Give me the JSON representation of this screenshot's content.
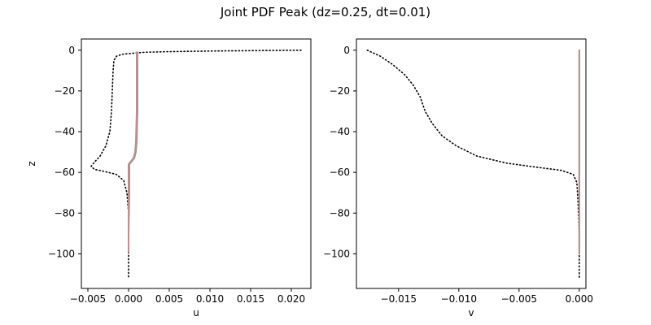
{
  "title": "Joint PDF Peak (dz=0.25, dt=0.01)",
  "chart_data": [
    {
      "type": "line",
      "xlabel": "u",
      "ylabel": "z",
      "xlim": [
        -0.0058,
        0.0224
      ],
      "ylim": [
        -117,
        5.5
      ],
      "xticks": [
        -0.005,
        0.0,
        0.005,
        0.01,
        0.015,
        0.02
      ],
      "xtick_labels": [
        "−0.005",
        "0.000",
        "0.005",
        "0.010",
        "0.015",
        "0.020"
      ],
      "yticks": [
        0,
        -20,
        -40,
        -60,
        -80,
        -100
      ],
      "ytick_labels": [
        "0",
        "−20",
        "−40",
        "−60",
        "−80",
        "−100"
      ],
      "series": [
        {
          "style": "dotted",
          "color": "#000000",
          "points": [
            [
              0.0212,
              0
            ],
            [
              0.016,
              -0.2
            ],
            [
              0.01,
              -0.4
            ],
            [
              0.005,
              -0.7
            ],
            [
              0.002,
              -1
            ],
            [
              0.0005,
              -1.5
            ],
            [
              -0.0008,
              -2
            ],
            [
              -0.0015,
              -3
            ],
            [
              -0.0018,
              -5
            ],
            [
              -0.0019,
              -10
            ],
            [
              -0.002,
              -20
            ],
            [
              -0.0021,
              -30
            ],
            [
              -0.0023,
              -40
            ],
            [
              -0.0028,
              -47
            ],
            [
              -0.0035,
              -52
            ],
            [
              -0.0042,
              -55
            ],
            [
              -0.0046,
              -57
            ],
            [
              -0.0042,
              -58.5
            ],
            [
              -0.003,
              -59.5
            ],
            [
              -0.0015,
              -61
            ],
            [
              -0.0006,
              -64
            ],
            [
              -0.0002,
              -70
            ],
            [
              0.0,
              -80
            ],
            [
              0.0,
              -100
            ],
            [
              0.0,
              -112
            ]
          ]
        },
        {
          "style": "solid",
          "color": "#999999",
          "points": [
            [
              0.0011,
              -1
            ],
            [
              0.0011,
              -10
            ],
            [
              0.0011,
              -30
            ],
            [
              0.001,
              -45
            ],
            [
              0.0009,
              -50
            ],
            [
              0.0007,
              -53
            ],
            [
              0.0003,
              -55
            ],
            [
              0.0001,
              -56
            ],
            [
              0.0001,
              -70
            ],
            [
              0.0,
              -90
            ],
            [
              0.0,
              -99
            ]
          ]
        },
        {
          "style": "solid",
          "color": "#bc8f8f",
          "points": [
            [
              0.001,
              -1
            ],
            [
              0.001,
              -10
            ],
            [
              0.001,
              -30
            ],
            [
              0.0009,
              -45
            ],
            [
              0.0008,
              -50
            ],
            [
              0.0006,
              -53
            ],
            [
              0.0002,
              -55
            ],
            [
              0.0,
              -56
            ],
            [
              0.0,
              -70
            ],
            [
              0.0,
              -90
            ],
            [
              0.0,
              -99
            ]
          ]
        }
      ]
    },
    {
      "type": "line",
      "xlabel": "v",
      "ylabel": "",
      "xlim": [
        -0.0185,
        0.00055
      ],
      "ylim": [
        -117,
        5.5
      ],
      "xticks": [
        -0.015,
        -0.01,
        -0.005,
        0.0
      ],
      "xtick_labels": [
        "−0.015",
        "−0.010",
        "−0.005",
        "0.000"
      ],
      "yticks": [
        0,
        -20,
        -40,
        -60,
        -80,
        -100
      ],
      "ytick_labels": [
        "0",
        "−20",
        "−40",
        "−60",
        "−80",
        "−100"
      ],
      "series": [
        {
          "style": "dotted",
          "color": "#000000",
          "points": [
            [
              -0.0176,
              0
            ],
            [
              -0.0165,
              -3
            ],
            [
              -0.0155,
              -7
            ],
            [
              -0.0145,
              -12
            ],
            [
              -0.0138,
              -17
            ],
            [
              -0.0132,
              -23
            ],
            [
              -0.0128,
              -30
            ],
            [
              -0.0122,
              -36
            ],
            [
              -0.0114,
              -42
            ],
            [
              -0.0102,
              -47
            ],
            [
              -0.0085,
              -52
            ],
            [
              -0.006,
              -55.5
            ],
            [
              -0.0035,
              -57.5
            ],
            [
              -0.0015,
              -59
            ],
            [
              -0.0005,
              -61
            ],
            [
              -0.0002,
              -65
            ],
            [
              -0.0001,
              -75
            ],
            [
              0.0,
              -90
            ],
            [
              0.0,
              -112
            ]
          ]
        },
        {
          "style": "solid",
          "color": "#999999",
          "points": [
            [
              0.0,
              0
            ],
            [
              0.0,
              -50
            ],
            [
              0.0,
              -60
            ],
            [
              0.0,
              -80
            ],
            [
              0.0,
              -100
            ]
          ]
        },
        {
          "style": "solid",
          "color": "#bc8f8f",
          "points": [
            [
              0.0,
              0
            ],
            [
              0.0,
              -50
            ],
            [
              0.0,
              -60
            ],
            [
              0.0,
              -80
            ],
            [
              0.0,
              -100
            ]
          ]
        }
      ]
    }
  ]
}
